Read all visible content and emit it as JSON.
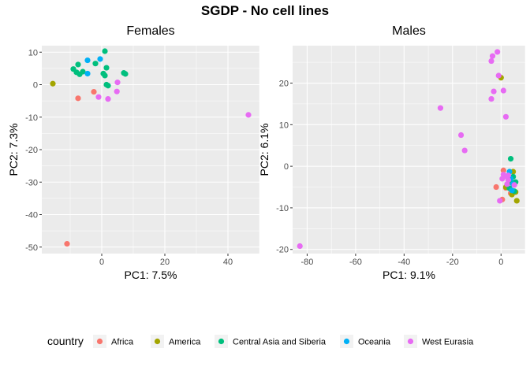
{
  "title": "SGDP - No cell lines",
  "colors": {
    "Africa": "#F8766D",
    "America": "#A3A500",
    "Central Asia and Siberia": "#00BF7D",
    "Oceania": "#00B0F6",
    "West Eurasia": "#E76BF3"
  },
  "legend": {
    "title": "country",
    "placement": "bottom",
    "entries": [
      "Africa",
      "America",
      "Central Asia and Siberia",
      "Oceania",
      "West Eurasia"
    ]
  },
  "chart_data": [
    {
      "type": "scatter",
      "title": "Females",
      "xlabel": "PC1: 7.5%",
      "ylabel": "PC2: 7.3%",
      "xlim": [
        -19,
        50
      ],
      "ylim": [
        -52,
        12
      ],
      "xticks": [
        0,
        20,
        40
      ],
      "yticks": [
        10,
        0,
        -10,
        -20,
        -30,
        -40,
        -50
      ],
      "grid": true,
      "series": [
        {
          "name": "Africa",
          "points": [
            [
              -11,
              -49
            ],
            [
              -7.5,
              -4.2
            ],
            [
              -2.5,
              -2.2
            ]
          ]
        },
        {
          "name": "America",
          "points": [
            [
              -15.5,
              0.3
            ]
          ]
        },
        {
          "name": "Central Asia and Siberia",
          "points": [
            [
              -9,
              4.8
            ],
            [
              -8,
              3.8
            ],
            [
              -7,
              3.2
            ],
            [
              -6,
              4.0
            ],
            [
              -7.5,
              6.2
            ],
            [
              -2,
              6.5
            ],
            [
              1,
              10.3
            ],
            [
              0.5,
              3.4
            ],
            [
              1,
              2.8
            ],
            [
              1.5,
              5.2
            ],
            [
              1.5,
              0.0
            ],
            [
              2,
              -0.3
            ],
            [
              7,
              3.6
            ],
            [
              7.5,
              3.3
            ]
          ]
        },
        {
          "name": "Oceania",
          "points": [
            [
              -4.5,
              7.5
            ],
            [
              -0.5,
              7.9
            ],
            [
              -4.5,
              3.4
            ]
          ]
        },
        {
          "name": "West Eurasia",
          "points": [
            [
              -1,
              -3.8
            ],
            [
              2,
              -4.4
            ],
            [
              5,
              0.7
            ],
            [
              4.8,
              -2.1
            ],
            [
              46.5,
              -9.3
            ]
          ]
        }
      ]
    },
    {
      "type": "scatter",
      "title": "Males",
      "xlabel": "PC1: 9.1%",
      "ylabel": "PC2: 6.1%",
      "xlim": [
        -86,
        10
      ],
      "ylim": [
        -21,
        29
      ],
      "xticks": [
        -80,
        -60,
        -40,
        -20,
        0
      ],
      "yticks": [
        20,
        10,
        0,
        -10,
        -20
      ],
      "grid": true,
      "series": [
        {
          "name": "Africa",
          "points": [
            [
              -2,
              -5.0
            ],
            [
              1,
              -1.0
            ],
            [
              0.5,
              -8.0
            ],
            [
              2,
              -5.2
            ],
            [
              4,
              -6.5
            ]
          ]
        },
        {
          "name": "America",
          "points": [
            [
              0,
              21.3
            ],
            [
              2,
              -5.0
            ],
            [
              4.5,
              -6.8
            ],
            [
              6,
              -6.2
            ],
            [
              6.5,
              -8.3
            ],
            [
              5,
              -1.3
            ]
          ]
        },
        {
          "name": "Central Asia and Siberia",
          "points": [
            [
              4,
              1.8
            ],
            [
              5,
              -2.5
            ],
            [
              4.5,
              -4.0
            ],
            [
              3.5,
              -5.3
            ],
            [
              6,
              -3.8
            ],
            [
              5.5,
              -6.0
            ]
          ]
        },
        {
          "name": "Oceania",
          "points": [
            [
              3.5,
              -1.3
            ],
            [
              4,
              -3.0
            ],
            [
              5,
              -4.3
            ],
            [
              4.5,
              -5.8
            ]
          ]
        },
        {
          "name": "West Eurasia",
          "points": [
            [
              -83,
              -19.2
            ],
            [
              -3.5,
              26.5
            ],
            [
              -4,
              25.3
            ],
            [
              -1.5,
              27.5
            ],
            [
              -1,
              21.8
            ],
            [
              -3,
              18.0
            ],
            [
              1,
              18.2
            ],
            [
              -4,
              16.2
            ],
            [
              2,
              11.9
            ],
            [
              -25,
              14.0
            ],
            [
              -16.5,
              7.5
            ],
            [
              -15,
              3.8
            ],
            [
              1,
              -2.0
            ],
            [
              0.5,
              -3.0
            ],
            [
              3,
              -2.2
            ],
            [
              2.5,
              -4.3
            ],
            [
              -0.5,
              -8.3
            ],
            [
              3,
              -3.3
            ],
            [
              5.5,
              -4.5
            ],
            [
              2,
              -2.4
            ]
          ]
        }
      ]
    }
  ]
}
